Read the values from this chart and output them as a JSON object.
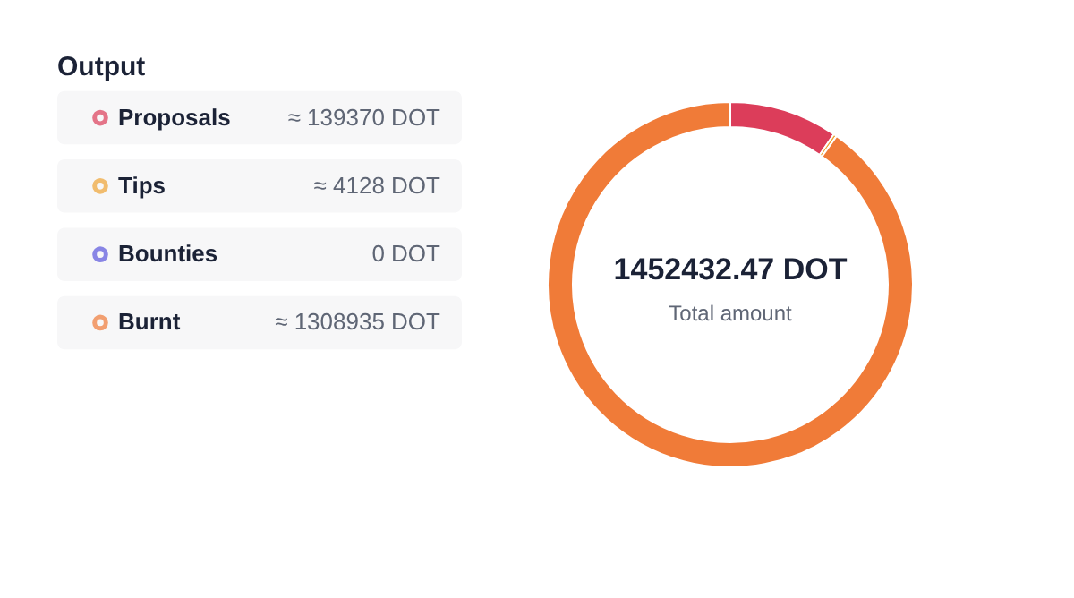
{
  "chart_data": {
    "type": "donut",
    "title": "Output",
    "categories": [
      "Proposals",
      "Tips",
      "Bounties",
      "Burnt"
    ],
    "values": [
      139370,
      4128,
      0,
      1308935
    ],
    "value_labels": [
      "≈ 139370 DOT",
      "≈ 4128 DOT",
      "0 DOT",
      "≈ 1308935 DOT"
    ],
    "colors": [
      "#dc3d5a",
      "#efa434",
      "#5a55dd",
      "#f07b38"
    ],
    "legend": "left",
    "annotations": [
      "1452432.47 DOT",
      "Total amount"
    ]
  }
}
